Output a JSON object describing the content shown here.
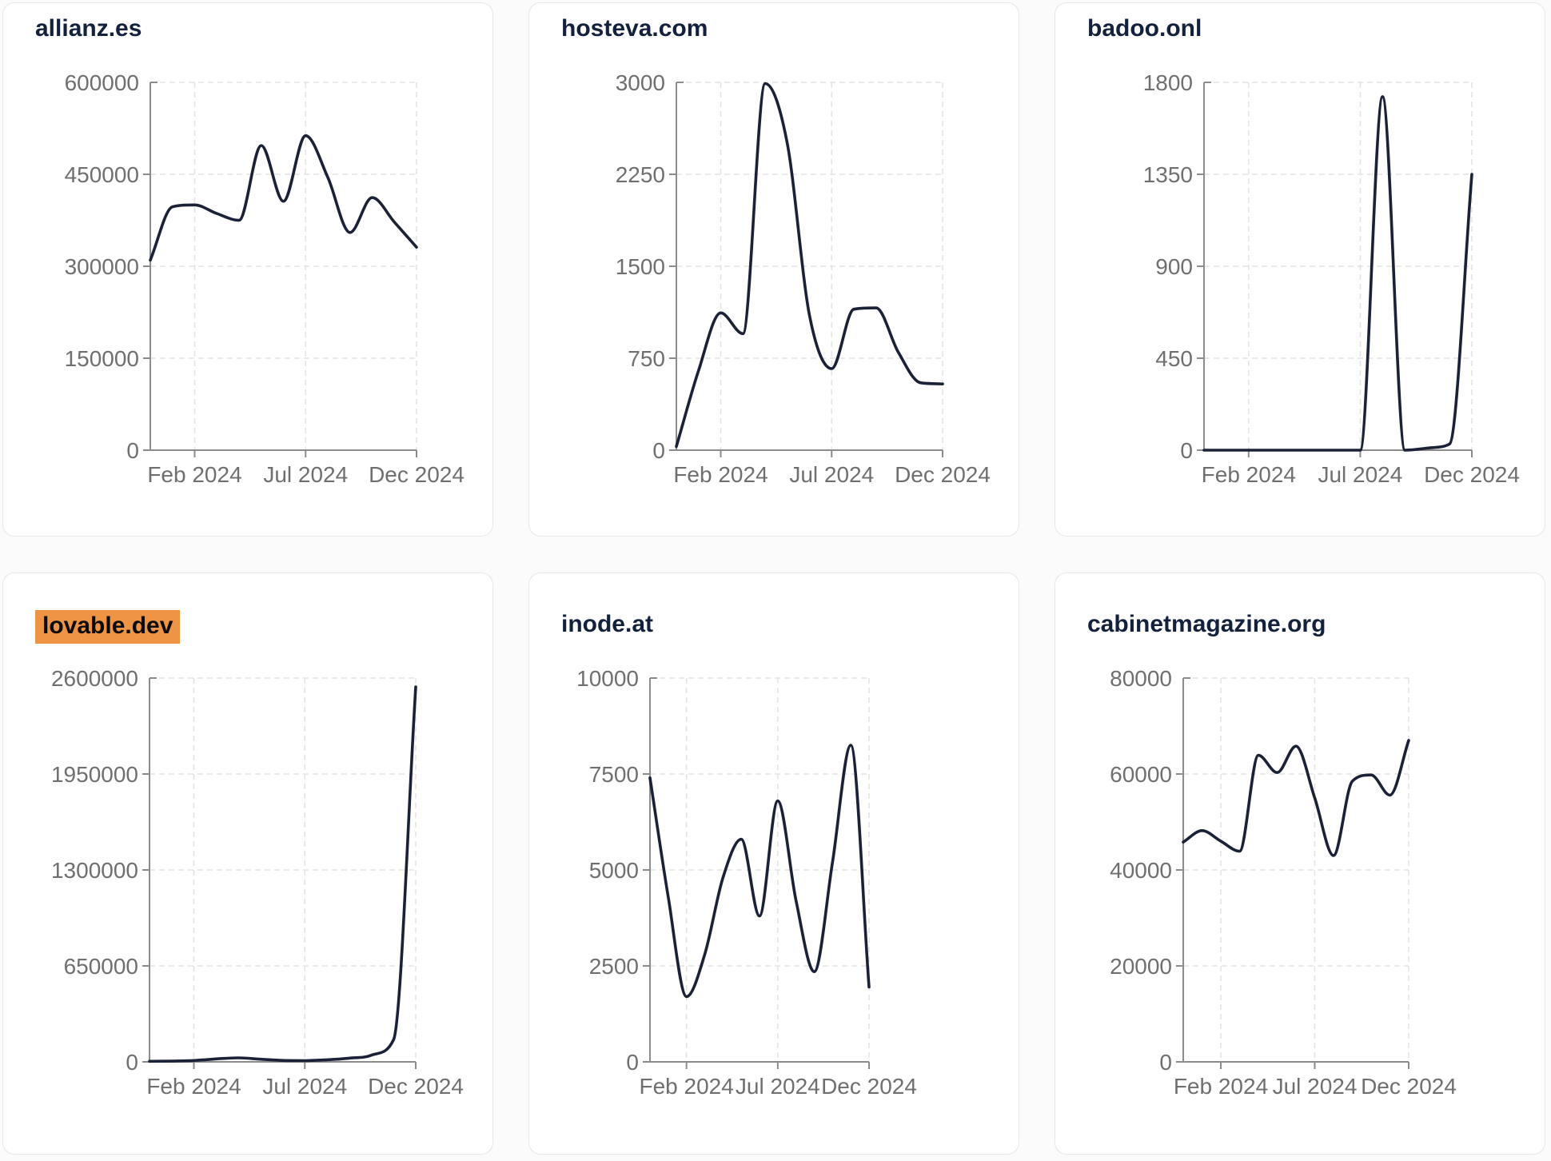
{
  "theme": {
    "line_color": "#1b2136",
    "title_color": "#14213d",
    "label_color": "#6f6f6f",
    "axis_color": "#8c8c8c",
    "grid_color": "#e3e3e3",
    "highlight_color": "#ef9445",
    "card_bg": "#ffffff",
    "card_border": "#e7e7e7",
    "page_bg": "#fbfbfb"
  },
  "x_axis_tick_labels": [
    "Feb 2024",
    "Jul 2024",
    "Dec 2024"
  ],
  "chart_data": [
    {
      "type": "line",
      "title": "allianz.es",
      "highlighted": false,
      "x": [
        "Dec 2023",
        "Jan 2024",
        "Feb 2024",
        "Mar 2024",
        "Apr 2024",
        "May 2024",
        "Jun 2024",
        "Jul 2024",
        "Aug 2024",
        "Sep 2024",
        "Oct 2024",
        "Nov 2024",
        "Dec 2024"
      ],
      "values": [
        310000,
        397000,
        400000,
        386000,
        375000,
        497000,
        406000,
        513000,
        445000,
        355000,
        412000,
        372000,
        331000
      ],
      "ylim": [
        0,
        600000
      ],
      "yticks": [
        0,
        150000,
        300000,
        450000,
        600000
      ],
      "xticks": [
        "Feb 2024",
        "Jul 2024",
        "Dec 2024"
      ],
      "grid": true,
      "legend": "none"
    },
    {
      "type": "line",
      "title": "hosteva.com",
      "highlighted": false,
      "x": [
        "Dec 2023",
        "Jan 2024",
        "Feb 2024",
        "Mar 2024",
        "Apr 2024",
        "May 2024",
        "Jun 2024",
        "Jul 2024",
        "Aug 2024",
        "Sep 2024",
        "Oct 2024",
        "Nov 2024",
        "Dec 2024"
      ],
      "values": [
        30,
        650,
        1120,
        950,
        2990,
        2500,
        1100,
        665,
        1150,
        1160,
        800,
        550,
        540
      ],
      "ylim": [
        0,
        3000
      ],
      "yticks": [
        0,
        750,
        1500,
        2250,
        3000
      ],
      "xticks": [
        "Feb 2024",
        "Jul 2024",
        "Dec 2024"
      ],
      "grid": true,
      "legend": "none"
    },
    {
      "type": "line",
      "title": "badoo.onl",
      "highlighted": false,
      "x": [
        "Dec 2023",
        "Jan 2024",
        "Feb 2024",
        "Mar 2024",
        "Apr 2024",
        "May 2024",
        "Jun 2024",
        "Jul 2024",
        "Aug 2024",
        "Sep 2024",
        "Oct 2024",
        "Nov 2024",
        "Dec 2024"
      ],
      "values": [
        0,
        0,
        0,
        0,
        0,
        0,
        0,
        0,
        1730,
        0,
        10,
        30,
        1350
      ],
      "ylim": [
        0,
        1800
      ],
      "yticks": [
        0,
        450,
        900,
        1350,
        1800
      ],
      "xticks": [
        "Feb 2024",
        "Jul 2024",
        "Dec 2024"
      ],
      "grid": true,
      "legend": "none"
    },
    {
      "type": "line",
      "title": "lovable.dev",
      "highlighted": true,
      "x": [
        "Dec 2023",
        "Jan 2024",
        "Feb 2024",
        "Mar 2024",
        "Apr 2024",
        "May 2024",
        "Jun 2024",
        "Jul 2024",
        "Aug 2024",
        "Sep 2024",
        "Oct 2024",
        "Nov 2024",
        "Dec 2024"
      ],
      "values": [
        4000,
        5000,
        9000,
        20000,
        27000,
        18000,
        10000,
        8000,
        14000,
        25000,
        45000,
        150000,
        2540000
      ],
      "ylim": [
        0,
        2600000
      ],
      "yticks": [
        0,
        650000,
        1300000,
        1950000,
        2600000
      ],
      "xticks": [
        "Feb 2024",
        "Jul 2024",
        "Dec 2024"
      ],
      "grid": true,
      "legend": "none"
    },
    {
      "type": "line",
      "title": "inode.at",
      "highlighted": false,
      "x": [
        "Dec 2023",
        "Jan 2024",
        "Feb 2024",
        "Mar 2024",
        "Apr 2024",
        "May 2024",
        "Jun 2024",
        "Jul 2024",
        "Aug 2024",
        "Sep 2024",
        "Oct 2024",
        "Nov 2024",
        "Dec 2024"
      ],
      "values": [
        7400,
        4300,
        1700,
        2800,
        4800,
        5800,
        3800,
        6800,
        4200,
        2350,
        5200,
        8250,
        1950
      ],
      "ylim": [
        0,
        10000
      ],
      "yticks": [
        0,
        2500,
        5000,
        7500,
        10000
      ],
      "xticks": [
        "Feb 2024",
        "Jul 2024",
        "Dec 2024"
      ],
      "grid": true,
      "legend": "none"
    },
    {
      "type": "line",
      "title": "cabinetmagazine.org",
      "highlighted": false,
      "x": [
        "Dec 2023",
        "Jan 2024",
        "Feb 2024",
        "Mar 2024",
        "Apr 2024",
        "May 2024",
        "Jun 2024",
        "Jul 2024",
        "Aug 2024",
        "Sep 2024",
        "Oct 2024",
        "Nov 2024",
        "Dec 2024"
      ],
      "values": [
        45800,
        48200,
        46000,
        43900,
        63900,
        60300,
        65800,
        55000,
        43000,
        58500,
        59800,
        55600,
        67000
      ],
      "ylim": [
        0,
        80000
      ],
      "yticks": [
        0,
        20000,
        40000,
        60000,
        80000
      ],
      "xticks": [
        "Feb 2024",
        "Jul 2024",
        "Dec 2024"
      ],
      "grid": true,
      "legend": "none"
    }
  ]
}
